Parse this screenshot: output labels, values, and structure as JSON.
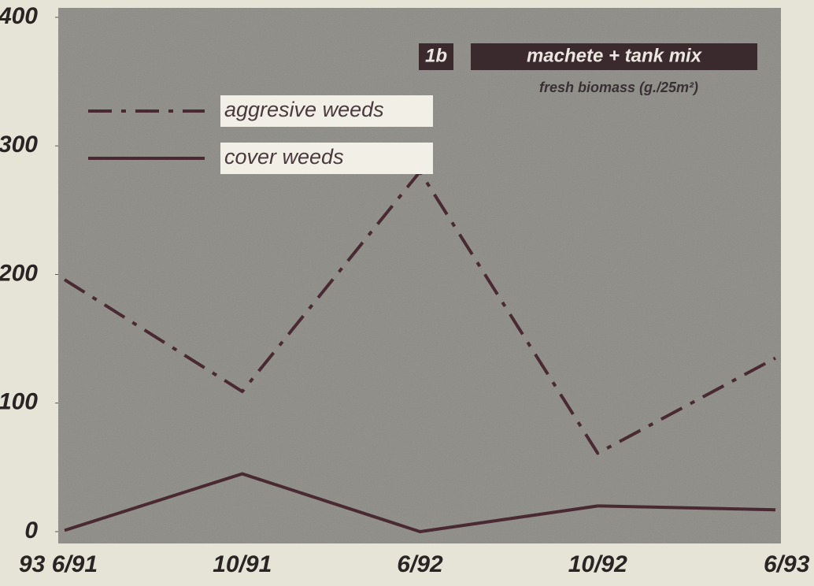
{
  "chart_data": {
    "type": "line",
    "annotations": [
      "1b",
      "machete + tank mix",
      "fresh biomass (g./25m²)"
    ],
    "categories": [
      "93 6/91",
      "10/91",
      "6/92",
      "10/92",
      "6/93"
    ],
    "series": [
      {
        "name": "aggresive weeds",
        "color": "#4a2a32",
        "dash": "dashdot",
        "values": [
          196,
          109,
          280,
          61,
          135
        ]
      },
      {
        "name": "cover weeds",
        "color": "#4a2a32",
        "dash": "solid",
        "values": [
          1,
          45,
          0,
          20,
          17
        ]
      }
    ],
    "ylim": [
      0,
      400
    ],
    "yticks": [
      0,
      100,
      200,
      300,
      400
    ]
  }
}
